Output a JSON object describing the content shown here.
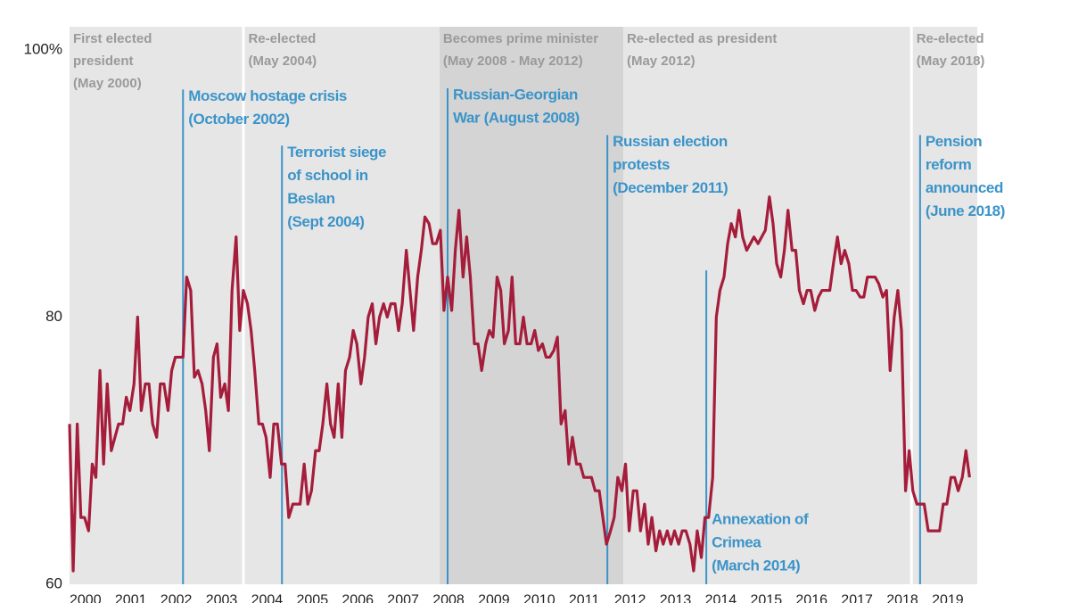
{
  "chart_data": {
    "type": "line",
    "color": "#a51d3b",
    "annotation_color": "#3b94c9",
    "period_text_color": "#9a9a9a",
    "grid": false,
    "xlim": [
      2000,
      2020
    ],
    "xticks": [
      2000,
      2001,
      2002,
      2003,
      2004,
      2005,
      2006,
      2007,
      2008,
      2009,
      2010,
      2011,
      2012,
      2013,
      2014,
      2015,
      2016,
      2017,
      2018,
      2019
    ],
    "ylim": [
      60,
      100
    ],
    "yticks": [
      60,
      80,
      {
        "value": 100,
        "label": "100%"
      }
    ],
    "periods": [
      {
        "lines": [
          "First elected",
          "president",
          "(May 2000)"
        ],
        "start": 2000,
        "end": 2003.8,
        "color": "#e6e6e6"
      },
      {
        "lines": [
          "Re-elected",
          "(May 2004)"
        ],
        "start": 2003.86,
        "end": 2008.15,
        "color": "#e6e6e6"
      },
      {
        "lines": [
          "Becomes prime minister",
          "(May 2008 - May 2012)"
        ],
        "start": 2008.15,
        "end": 2012.2,
        "color": "#d4d4d4"
      },
      {
        "lines": [
          "Re-elected as president",
          "(May 2012)"
        ],
        "start": 2012.2,
        "end": 2018.52,
        "color": "#e6e6e6"
      },
      {
        "lines": [
          "Re-elected",
          "(May 2018)"
        ],
        "start": 2018.58,
        "end": 2020,
        "color": "#e6e6e6"
      }
    ],
    "annotations": [
      {
        "lines": [
          "Moscow hostage crisis",
          "(October 2002)"
        ],
        "x": 2002.5,
        "y": 96.5
      },
      {
        "lines": [
          "Terrorist siege",
          "of school in",
          "Beslan",
          "(Sept 2004)"
        ],
        "x": 2004.68,
        "y": 92.3
      },
      {
        "lines": [
          "Russian-Georgian",
          "War (August 2008)"
        ],
        "x": 2008.33,
        "y": 96.6
      },
      {
        "lines": [
          "Russian election",
          "protests",
          "(December 2011)"
        ],
        "x": 2011.85,
        "y": 93.1
      },
      {
        "lines": [
          "Annexation of",
          "Crimea",
          "(March 2014)"
        ],
        "x": 2014.03,
        "y": 64.8,
        "line_end": 83.5
      },
      {
        "lines": [
          "Pension",
          "reform",
          "announced",
          "(June 2018)"
        ],
        "x": 2018.74,
        "y": 93.1
      }
    ],
    "x": [
      2000.0,
      2000.08,
      2000.17,
      2000.25,
      2000.33,
      2000.42,
      2000.5,
      2000.58,
      2000.67,
      2000.75,
      2000.83,
      2000.92,
      2001.0,
      2001.08,
      2001.17,
      2001.25,
      2001.33,
      2001.42,
      2001.5,
      2001.58,
      2001.67,
      2001.75,
      2001.83,
      2001.92,
      2002.0,
      2002.08,
      2002.17,
      2002.25,
      2002.33,
      2002.42,
      2002.5,
      2002.58,
      2002.67,
      2002.75,
      2002.83,
      2002.92,
      2003.0,
      2003.08,
      2003.17,
      2003.25,
      2003.33,
      2003.42,
      2003.5,
      2003.58,
      2003.67,
      2003.75,
      2003.83,
      2003.92,
      2004.0,
      2004.08,
      2004.17,
      2004.25,
      2004.33,
      2004.42,
      2004.5,
      2004.58,
      2004.67,
      2004.75,
      2004.83,
      2004.92,
      2005.0,
      2005.08,
      2005.17,
      2005.25,
      2005.33,
      2005.42,
      2005.5,
      2005.58,
      2005.67,
      2005.75,
      2005.83,
      2005.92,
      2006.0,
      2006.08,
      2006.17,
      2006.25,
      2006.33,
      2006.42,
      2006.5,
      2006.58,
      2006.67,
      2006.75,
      2006.83,
      2006.92,
      2007.0,
      2007.08,
      2007.17,
      2007.25,
      2007.33,
      2007.42,
      2007.5,
      2007.58,
      2007.67,
      2007.75,
      2007.83,
      2007.92,
      2008.0,
      2008.08,
      2008.17,
      2008.25,
      2008.33,
      2008.42,
      2008.5,
      2008.58,
      2008.67,
      2008.75,
      2008.83,
      2008.92,
      2009.0,
      2009.08,
      2009.17,
      2009.25,
      2009.33,
      2009.42,
      2009.5,
      2009.58,
      2009.67,
      2009.75,
      2009.83,
      2009.92,
      2010.0,
      2010.08,
      2010.17,
      2010.25,
      2010.33,
      2010.42,
      2010.5,
      2010.58,
      2010.67,
      2010.75,
      2010.83,
      2010.92,
      2011.0,
      2011.08,
      2011.17,
      2011.25,
      2011.33,
      2011.42,
      2011.5,
      2011.58,
      2011.67,
      2011.75,
      2011.83,
      2011.92,
      2012.0,
      2012.08,
      2012.17,
      2012.25,
      2012.33,
      2012.42,
      2012.5,
      2012.58,
      2012.67,
      2012.75,
      2012.83,
      2012.92,
      2013.0,
      2013.08,
      2013.17,
      2013.25,
      2013.33,
      2013.42,
      2013.5,
      2013.58,
      2013.67,
      2013.75,
      2013.83,
      2013.92,
      2014.0,
      2014.08,
      2014.17,
      2014.25,
      2014.33,
      2014.42,
      2014.5,
      2014.58,
      2014.67,
      2014.75,
      2014.83,
      2014.92,
      2015.0,
      2015.08,
      2015.17,
      2015.25,
      2015.33,
      2015.42,
      2015.5,
      2015.58,
      2015.67,
      2015.75,
      2015.83,
      2015.92,
      2016.0,
      2016.08,
      2016.17,
      2016.25,
      2016.33,
      2016.42,
      2016.5,
      2016.58,
      2016.67,
      2016.75,
      2016.83,
      2016.92,
      2017.0,
      2017.08,
      2017.17,
      2017.25,
      2017.33,
      2017.42,
      2017.5,
      2017.58,
      2017.67,
      2017.75,
      2017.83,
      2017.92,
      2018.0,
      2018.08,
      2018.17,
      2018.25,
      2018.33,
      2018.42,
      2018.5,
      2018.58,
      2018.67,
      2018.75,
      2018.83,
      2018.92,
      2019.0,
      2019.08,
      2019.17,
      2019.25,
      2019.33,
      2019.42,
      2019.5,
      2019.58,
      2019.67,
      2019.75,
      2019.83
    ],
    "values": [
      72,
      61,
      72,
      65,
      65,
      64,
      69,
      68,
      76,
      69,
      75,
      70,
      71,
      72,
      72,
      74,
      73,
      75,
      80,
      73,
      75,
      75,
      72,
      71,
      75,
      75,
      73,
      76,
      77,
      77,
      77,
      83,
      82,
      75.5,
      76,
      75,
      73,
      70,
      77,
      78,
      74,
      75,
      73,
      82,
      86,
      79,
      82,
      81,
      79,
      76,
      72,
      72,
      71,
      68,
      72,
      72,
      69,
      69,
      65,
      66,
      66,
      66,
      69,
      66,
      67,
      70,
      70,
      72,
      75,
      72,
      71,
      75,
      71,
      76,
      77,
      79,
      78,
      75,
      77,
      80,
      81,
      78,
      80,
      81,
      80,
      81,
      81,
      79,
      81,
      85,
      82,
      79,
      83,
      85,
      87.5,
      87,
      85.5,
      85.5,
      86.5,
      80.5,
      83,
      80.5,
      85,
      88,
      83,
      86,
      83,
      78,
      78,
      76,
      78,
      79,
      78.5,
      83,
      82,
      78,
      79,
      83,
      78,
      78,
      80,
      78,
      78,
      79,
      77.5,
      78,
      77,
      77,
      77.5,
      78.5,
      72,
      73,
      69,
      71,
      69,
      69,
      68,
      68,
      68,
      67,
      67,
      65,
      63,
      64,
      65,
      68,
      67,
      69,
      64,
      67,
      67,
      64,
      66,
      63,
      65,
      62.5,
      64,
      63,
      64,
      63,
      64,
      63,
      64,
      64,
      63,
      61,
      64,
      62,
      65,
      65,
      68,
      80,
      82,
      83,
      85.5,
      87,
      86,
      88,
      86,
      85,
      85.5,
      86,
      85.5,
      86,
      86.5,
      89,
      87,
      84,
      83,
      85,
      88,
      85,
      85,
      82,
      81,
      82,
      82,
      80.5,
      81.5,
      82,
      82,
      82,
      84,
      86,
      84,
      85,
      84,
      82,
      82,
      81.5,
      81.5,
      83,
      83,
      83,
      82.5,
      81.5,
      82,
      76,
      80,
      82,
      79,
      67,
      70,
      67,
      66,
      66,
      66,
      64,
      64,
      64,
      64,
      66,
      66,
      68,
      68,
      67,
      68,
      70,
      68
    ]
  }
}
